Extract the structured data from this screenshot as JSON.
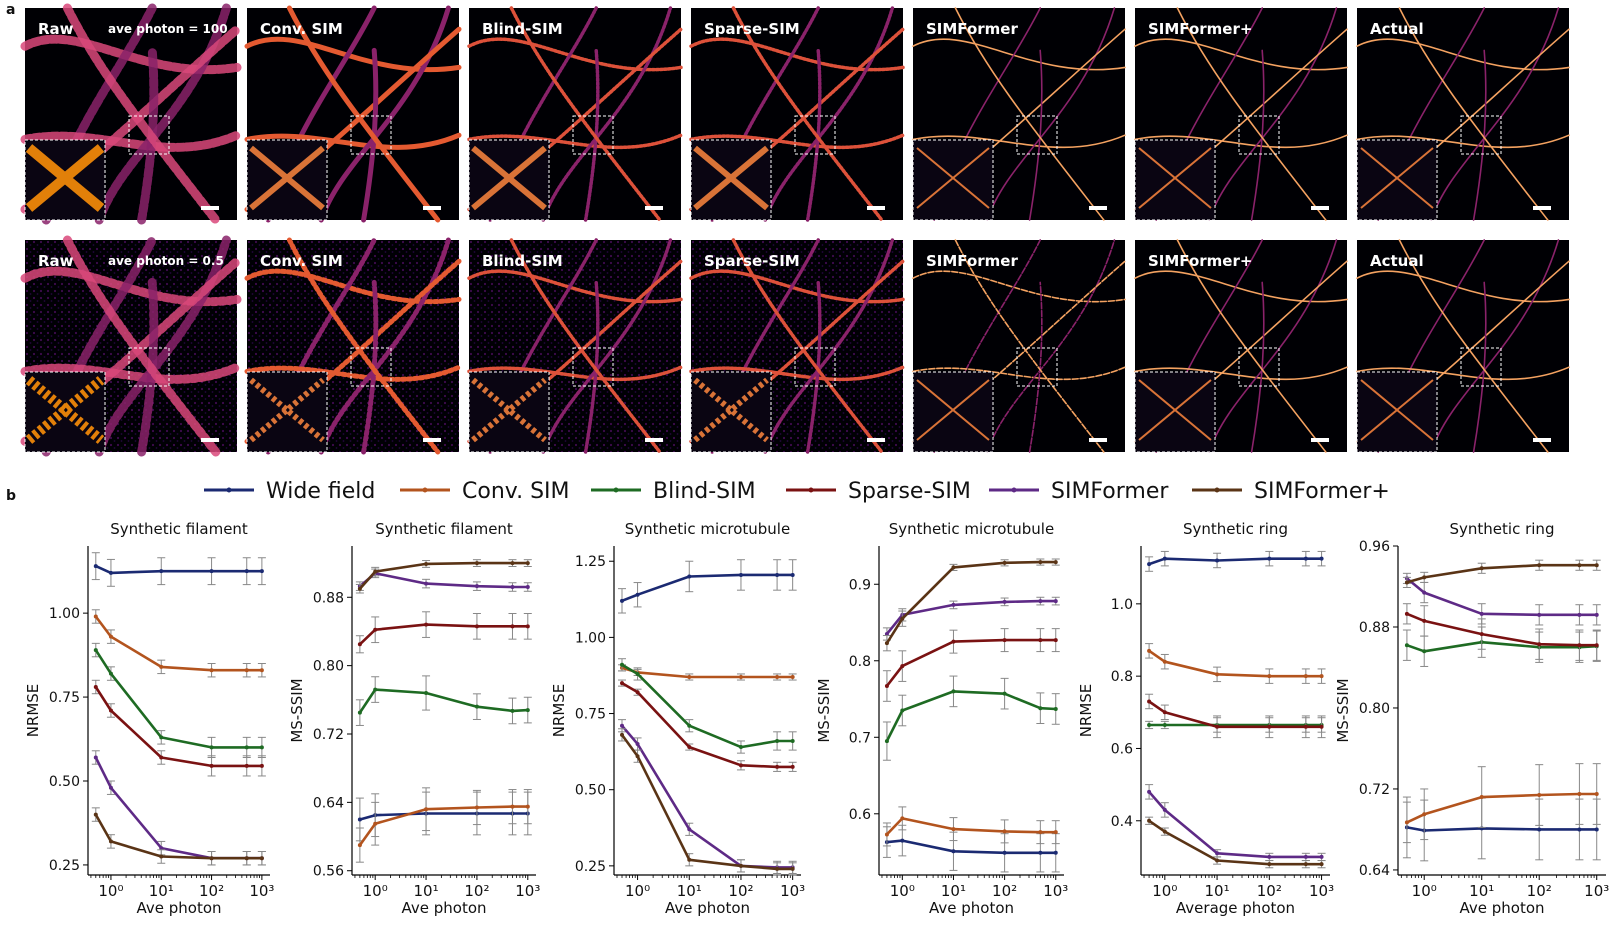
{
  "panel_labels": {
    "a": "a",
    "b": "b"
  },
  "image_grid": {
    "rows": [
      {
        "photon_label": "ave photon = 100",
        "tiles": [
          "Raw",
          "Conv. SIM",
          "Blind-SIM",
          "Sparse-SIM",
          "SIMFormer",
          "SIMFormer+",
          "Actual"
        ]
      },
      {
        "photon_label": "ave photon = 0.5",
        "tiles": [
          "Raw",
          "Conv. SIM",
          "Blind-SIM",
          "Sparse-SIM",
          "SIMFormer",
          "SIMFormer+",
          "Actual"
        ]
      }
    ]
  },
  "legend": [
    {
      "name": "Wide field",
      "color": "#1b2a72"
    },
    {
      "name": "Conv. SIM",
      "color": "#b3541e"
    },
    {
      "name": "Blind-SIM",
      "color": "#1e6b23"
    },
    {
      "name": "Sparse-SIM",
      "color": "#7a1212"
    },
    {
      "name": "SIMFormer",
      "color": "#5e2a86"
    },
    {
      "name": "SIMFormer+",
      "color": "#5a3416"
    }
  ],
  "colors": {
    "wide_field": "#1b2a72",
    "conv_sim": "#b3541e",
    "blind_sim": "#1e6b23",
    "sparse_sim": "#7a1212",
    "simformer": "#5e2a86",
    "simformer_plus": "#5a3416",
    "error_bar": "#888888",
    "image_bg": "#000004"
  },
  "chart_data": [
    {
      "type": "line",
      "title": "Synthetic filament",
      "xlabel": "Ave photon",
      "ylabel": "NRMSE",
      "x": [
        0.5,
        1,
        10,
        100,
        500,
        1000
      ],
      "xscale": "log",
      "xlim": [
        0.35,
        1450
      ],
      "ylim": [
        0.22,
        1.2
      ],
      "yticks": [
        0.25,
        0.5,
        0.75,
        1.0
      ],
      "ytick_labels": [
        "0.25",
        "0.50",
        "0.75",
        "1.00"
      ],
      "xtick_labels": [
        "10^0",
        "10^1",
        "10^2",
        "10^3"
      ],
      "series": [
        {
          "name": "Wide field",
          "values": [
            1.14,
            1.12,
            1.125,
            1.125,
            1.125,
            1.125
          ],
          "err": [
            0.04,
            0.04,
            0.04,
            0.04,
            0.04,
            0.04
          ]
        },
        {
          "name": "Conv. SIM",
          "values": [
            0.99,
            0.93,
            0.84,
            0.83,
            0.83,
            0.83
          ],
          "err": [
            0.02,
            0.02,
            0.02,
            0.02,
            0.02,
            0.02
          ]
        },
        {
          "name": "Blind-SIM",
          "values": [
            0.89,
            0.82,
            0.63,
            0.6,
            0.6,
            0.6
          ],
          "err": [
            0.02,
            0.02,
            0.02,
            0.03,
            0.03,
            0.03
          ]
        },
        {
          "name": "Sparse-SIM",
          "values": [
            0.78,
            0.71,
            0.57,
            0.545,
            0.545,
            0.545
          ],
          "err": [
            0.02,
            0.02,
            0.02,
            0.03,
            0.03,
            0.03
          ]
        },
        {
          "name": "SIMFormer",
          "values": [
            0.57,
            0.48,
            0.3,
            0.27,
            0.27,
            0.27
          ],
          "err": [
            0.02,
            0.02,
            0.02,
            0.02,
            0.02,
            0.02
          ]
        },
        {
          "name": "SIMFormer+",
          "values": [
            0.4,
            0.32,
            0.275,
            0.27,
            0.27,
            0.27
          ],
          "err": [
            0.02,
            0.02,
            0.02,
            0.02,
            0.02,
            0.02
          ]
        }
      ]
    },
    {
      "type": "line",
      "title": "Synthetic filament",
      "xlabel": "Ave photon",
      "ylabel": "MS-SSIM",
      "x": [
        0.5,
        1,
        10,
        100,
        500,
        1000
      ],
      "xscale": "log",
      "xlim": [
        0.35,
        1450
      ],
      "ylim": [
        0.555,
        0.94
      ],
      "yticks": [
        0.56,
        0.64,
        0.72,
        0.8,
        0.88
      ],
      "ytick_labels": [
        "0.56",
        "0.64",
        "0.72",
        "0.80",
        "0.88"
      ],
      "xtick_labels": [
        "10^0",
        "10^1",
        "10^2",
        "10^3"
      ],
      "series": [
        {
          "name": "Wide field",
          "values": [
            0.62,
            0.625,
            0.627,
            0.627,
            0.627,
            0.627
          ],
          "err": [
            0.025,
            0.025,
            0.025,
            0.025,
            0.025,
            0.025
          ]
        },
        {
          "name": "Conv. SIM",
          "values": [
            0.59,
            0.615,
            0.632,
            0.634,
            0.635,
            0.635
          ],
          "err": [
            0.02,
            0.025,
            0.025,
            0.02,
            0.02,
            0.02
          ]
        },
        {
          "name": "Blind-SIM",
          "values": [
            0.745,
            0.772,
            0.768,
            0.752,
            0.747,
            0.748
          ],
          "err": [
            0.015,
            0.015,
            0.02,
            0.015,
            0.015,
            0.015
          ]
        },
        {
          "name": "Sparse-SIM",
          "values": [
            0.825,
            0.842,
            0.848,
            0.846,
            0.846,
            0.846
          ],
          "err": [
            0.01,
            0.015,
            0.015,
            0.015,
            0.015,
            0.015
          ]
        },
        {
          "name": "SIMFormer",
          "values": [
            0.893,
            0.908,
            0.896,
            0.893,
            0.892,
            0.892
          ],
          "err": [
            0.005,
            0.005,
            0.005,
            0.005,
            0.005,
            0.005
          ]
        },
        {
          "name": "SIMFormer+",
          "values": [
            0.89,
            0.91,
            0.919,
            0.92,
            0.92,
            0.92
          ],
          "err": [
            0.005,
            0.005,
            0.004,
            0.004,
            0.004,
            0.004
          ]
        }
      ]
    },
    {
      "type": "line",
      "title": "Synthetic microtubule",
      "xlabel": "Ave photon",
      "ylabel": "NRMSE",
      "x": [
        0.5,
        1,
        10,
        100,
        500,
        1000
      ],
      "xscale": "log",
      "xlim": [
        0.35,
        1450
      ],
      "ylim": [
        0.22,
        1.3
      ],
      "yticks": [
        0.25,
        0.5,
        0.75,
        1.0,
        1.25
      ],
      "ytick_labels": [
        "0.25",
        "0.50",
        "0.75",
        "1.00",
        "1.25"
      ],
      "xtick_labels": [
        "10^0",
        "10^1",
        "10^2",
        "10^3"
      ],
      "series": [
        {
          "name": "Wide field",
          "values": [
            1.12,
            1.14,
            1.2,
            1.205,
            1.205,
            1.205
          ],
          "err": [
            0.04,
            0.04,
            0.05,
            0.05,
            0.05,
            0.05
          ]
        },
        {
          "name": "Conv. SIM",
          "values": [
            0.9,
            0.885,
            0.87,
            0.87,
            0.87,
            0.87
          ],
          "err": [
            0.01,
            0.01,
            0.01,
            0.01,
            0.01,
            0.01
          ]
        },
        {
          "name": "Blind-SIM",
          "values": [
            0.91,
            0.88,
            0.71,
            0.64,
            0.66,
            0.66
          ],
          "err": [
            0.02,
            0.02,
            0.02,
            0.02,
            0.03,
            0.03
          ]
        },
        {
          "name": "Sparse-SIM",
          "values": [
            0.85,
            0.82,
            0.64,
            0.58,
            0.575,
            0.575
          ],
          "err": [
            0.01,
            0.01,
            0.01,
            0.015,
            0.015,
            0.015
          ]
        },
        {
          "name": "SIMFormer",
          "values": [
            0.71,
            0.65,
            0.37,
            0.25,
            0.245,
            0.245
          ],
          "err": [
            0.02,
            0.02,
            0.02,
            0.02,
            0.02,
            0.02
          ]
        },
        {
          "name": "SIMFormer+",
          "values": [
            0.68,
            0.61,
            0.27,
            0.25,
            0.24,
            0.24
          ],
          "err": [
            0.02,
            0.02,
            0.02,
            0.02,
            0.02,
            0.02
          ]
        }
      ]
    },
    {
      "type": "line",
      "title": "Synthetic microtubule",
      "xlabel": "Ave photon",
      "ylabel": "MS-SSIM",
      "x": [
        0.5,
        1,
        10,
        100,
        500,
        1000
      ],
      "xscale": "log",
      "xlim": [
        0.35,
        1450
      ],
      "ylim": [
        0.52,
        0.95
      ],
      "yticks": [
        0.6,
        0.7,
        0.8,
        0.9
      ],
      "ytick_labels": [
        "0.6",
        "0.7",
        "0.8",
        "0.9"
      ],
      "xtick_labels": [
        "10^0",
        "10^1",
        "10^2",
        "10^3"
      ],
      "series": [
        {
          "name": "Wide field",
          "values": [
            0.563,
            0.565,
            0.551,
            0.549,
            0.549,
            0.549
          ],
          "err": [
            0.02,
            0.02,
            0.025,
            0.025,
            0.025,
            0.025
          ]
        },
        {
          "name": "Conv. SIM",
          "values": [
            0.573,
            0.594,
            0.58,
            0.577,
            0.576,
            0.576
          ],
          "err": [
            0.015,
            0.015,
            0.015,
            0.015,
            0.015,
            0.015
          ]
        },
        {
          "name": "Blind-SIM",
          "values": [
            0.695,
            0.735,
            0.76,
            0.757,
            0.738,
            0.737
          ],
          "err": [
            0.025,
            0.02,
            0.02,
            0.02,
            0.02,
            0.02
          ]
        },
        {
          "name": "Sparse-SIM",
          "values": [
            0.767,
            0.793,
            0.825,
            0.827,
            0.827,
            0.827
          ],
          "err": [
            0.02,
            0.02,
            0.015,
            0.015,
            0.015,
            0.015
          ]
        },
        {
          "name": "SIMFormer",
          "values": [
            0.835,
            0.86,
            0.873,
            0.877,
            0.878,
            0.878
          ],
          "err": [
            0.008,
            0.008,
            0.005,
            0.005,
            0.005,
            0.005
          ]
        },
        {
          "name": "SIMFormer+",
          "values": [
            0.823,
            0.855,
            0.922,
            0.928,
            0.929,
            0.929
          ],
          "err": [
            0.01,
            0.01,
            0.004,
            0.004,
            0.004,
            0.004
          ]
        }
      ]
    },
    {
      "type": "line",
      "title": "Synthetic ring",
      "xlabel": "Average photon",
      "ylabel": "NRMSE",
      "x": [
        0.5,
        1,
        10,
        100,
        500,
        1000
      ],
      "xscale": "log",
      "xlim": [
        0.35,
        1450
      ],
      "ylim": [
        0.25,
        1.16
      ],
      "yticks": [
        0.4,
        0.6,
        0.8,
        1.0
      ],
      "ytick_labels": [
        "0.4",
        "0.6",
        "0.8",
        "1.0"
      ],
      "xtick_labels": [
        "10^0",
        "10^1",
        "10^2",
        "10^3"
      ],
      "series": [
        {
          "name": "Wide field",
          "values": [
            1.11,
            1.125,
            1.12,
            1.125,
            1.125,
            1.125
          ],
          "err": [
            0.02,
            0.02,
            0.02,
            0.02,
            0.02,
            0.02
          ]
        },
        {
          "name": "Conv. SIM",
          "values": [
            0.87,
            0.84,
            0.805,
            0.8,
            0.8,
            0.8
          ],
          "err": [
            0.02,
            0.02,
            0.02,
            0.02,
            0.02,
            0.02
          ]
        },
        {
          "name": "Blind-SIM",
          "values": [
            0.665,
            0.665,
            0.665,
            0.665,
            0.665,
            0.665
          ],
          "err": [
            0.01,
            0.01,
            0.02,
            0.02,
            0.02,
            0.02
          ]
        },
        {
          "name": "Sparse-SIM",
          "values": [
            0.73,
            0.7,
            0.66,
            0.66,
            0.66,
            0.66
          ],
          "err": [
            0.02,
            0.02,
            0.03,
            0.03,
            0.03,
            0.03
          ]
        },
        {
          "name": "SIMFormer",
          "values": [
            0.48,
            0.43,
            0.31,
            0.3,
            0.3,
            0.3
          ],
          "err": [
            0.02,
            0.02,
            0.01,
            0.01,
            0.01,
            0.01
          ]
        },
        {
          "name": "SIMFormer+",
          "values": [
            0.4,
            0.37,
            0.29,
            0.28,
            0.28,
            0.28
          ],
          "err": [
            0.01,
            0.01,
            0.01,
            0.01,
            0.01,
            0.01
          ]
        }
      ]
    },
    {
      "type": "line",
      "title": "Synthetic ring",
      "xlabel": "Ave photon",
      "ylabel": "MS-SSIM",
      "x": [
        0.5,
        1,
        10,
        100,
        500,
        1000
      ],
      "xscale": "log",
      "xlim": [
        0.35,
        1450
      ],
      "ylim": [
        0.635,
        0.96
      ],
      "yticks": [
        0.64,
        0.72,
        0.8,
        0.88,
        0.96
      ],
      "ytick_labels": [
        "0.64",
        "0.72",
        "0.80",
        "0.88",
        "0.96"
      ],
      "xtick_labels": [
        "10^0",
        "10^1",
        "10^2",
        "10^3"
      ],
      "series": [
        {
          "name": "Wide field",
          "values": [
            0.682,
            0.679,
            0.681,
            0.68,
            0.68,
            0.68
          ],
          "err": [
            0.03,
            0.03,
            0.03,
            0.03,
            0.03,
            0.03
          ]
        },
        {
          "name": "Conv. SIM",
          "values": [
            0.687,
            0.695,
            0.712,
            0.714,
            0.715,
            0.715
          ],
          "err": [
            0.02,
            0.025,
            0.03,
            0.03,
            0.03,
            0.03
          ]
        },
        {
          "name": "Blind-SIM",
          "values": [
            0.862,
            0.856,
            0.865,
            0.86,
            0.86,
            0.861
          ],
          "err": [
            0.015,
            0.015,
            0.015,
            0.015,
            0.015,
            0.015
          ]
        },
        {
          "name": "Sparse-SIM",
          "values": [
            0.893,
            0.886,
            0.873,
            0.863,
            0.862,
            0.862
          ],
          "err": [
            0.01,
            0.015,
            0.015,
            0.015,
            0.015,
            0.015
          ]
        },
        {
          "name": "SIMFormer",
          "values": [
            0.928,
            0.914,
            0.893,
            0.892,
            0.892,
            0.892
          ],
          "err": [
            0.005,
            0.01,
            0.01,
            0.01,
            0.01,
            0.01
          ]
        },
        {
          "name": "SIMFormer+",
          "values": [
            0.924,
            0.929,
            0.938,
            0.941,
            0.941,
            0.941
          ],
          "err": [
            0.005,
            0.005,
            0.005,
            0.005,
            0.005,
            0.005
          ]
        }
      ]
    }
  ]
}
